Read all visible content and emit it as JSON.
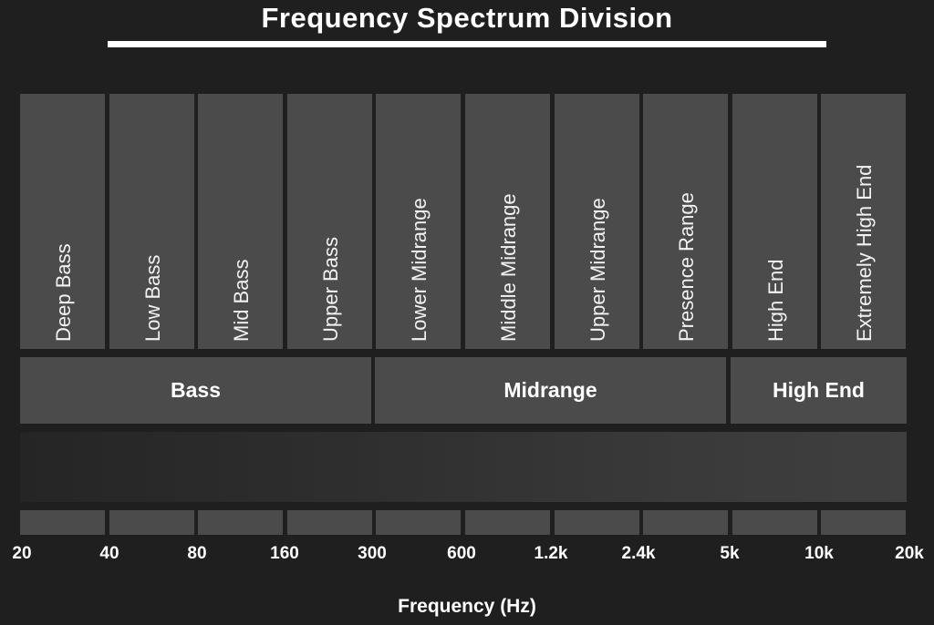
{
  "title": "Frequency Spectrum Division",
  "bands": [
    {
      "label": "Deep Bass"
    },
    {
      "label": "Low Bass"
    },
    {
      "label": "Mid Bass"
    },
    {
      "label": "Upper Bass"
    },
    {
      "label": "Lower Midrange"
    },
    {
      "label": "Middle Midrange"
    },
    {
      "label": "Upper Midrange"
    },
    {
      "label": "Presence Range"
    },
    {
      "label": "High End"
    },
    {
      "label": "Extremely High End"
    }
  ],
  "groups": [
    {
      "label": "Bass"
    },
    {
      "label": "Midrange"
    },
    {
      "label": "High End"
    }
  ],
  "ticks": [
    "20",
    "40",
    "80",
    "160",
    "300",
    "600",
    "1.2k",
    "2.4k",
    "5k",
    "10k",
    "20k"
  ],
  "x_axis_label": "Frequency (Hz)",
  "colors": {
    "background": "#1f1f1f",
    "band": "#4b4b4b",
    "text": "#ffffff"
  }
}
